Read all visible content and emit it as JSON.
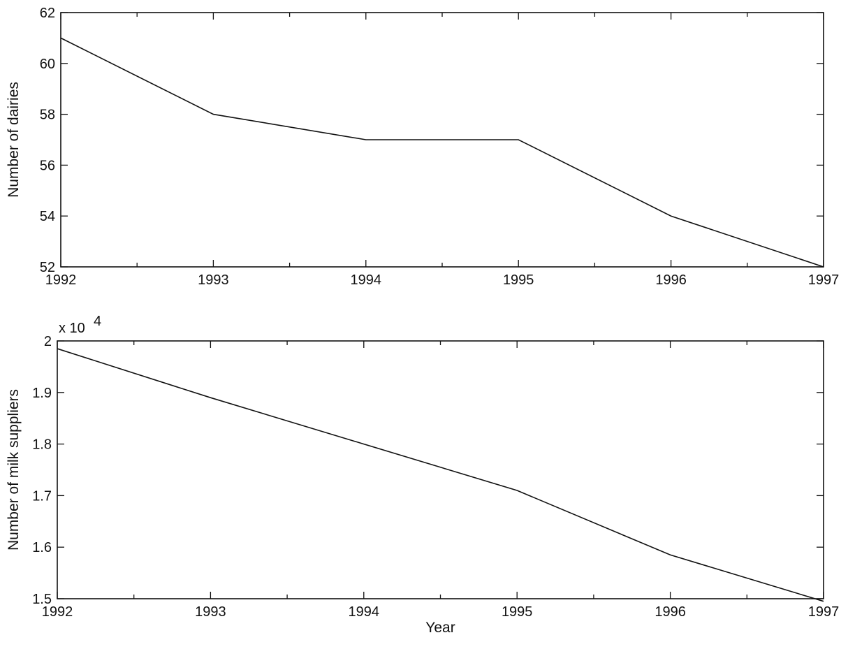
{
  "chart_data": [
    {
      "type": "line",
      "title": "",
      "xlabel": "",
      "ylabel": "Number of dairies",
      "xlim": [
        1992,
        1997
      ],
      "ylim": [
        52,
        62
      ],
      "x_ticks": [
        1992,
        1993,
        1994,
        1995,
        1996,
        1997
      ],
      "y_ticks": [
        52,
        54,
        56,
        58,
        60,
        62
      ],
      "x_tick_labels": [
        "1992",
        "1993",
        "1994",
        "1995",
        "1996",
        "1997"
      ],
      "y_tick_labels": [
        "52",
        "54",
        "56",
        "58",
        "60",
        "62"
      ],
      "exponent_label": "",
      "grid": false,
      "series": [
        {
          "x": [
            1992,
            1993,
            1994,
            1995,
            1996,
            1997
          ],
          "values": [
            61,
            58,
            57,
            57,
            54,
            52
          ]
        }
      ]
    },
    {
      "type": "line",
      "title": "",
      "xlabel": "Year",
      "ylabel": "Number of milk suppliers",
      "xlim": [
        1992,
        1997
      ],
      "ylim": [
        15000,
        20000
      ],
      "x_ticks": [
        1992,
        1993,
        1994,
        1995,
        1996,
        1997
      ],
      "y_ticks": [
        15000,
        16000,
        17000,
        18000,
        19000,
        20000
      ],
      "x_tick_labels": [
        "1992",
        "1993",
        "1994",
        "1995",
        "1996",
        "1997"
      ],
      "y_tick_labels": [
        "1.5",
        "1.6",
        "1.7",
        "1.8",
        "1.9",
        "2"
      ],
      "exponent_label": "x 10",
      "exponent_power": "4",
      "grid": false,
      "series": [
        {
          "x": [
            1992,
            1993,
            1994,
            1995,
            1996,
            1997
          ],
          "values": [
            19850,
            18900,
            18000,
            17100,
            15850,
            14950
          ]
        }
      ]
    }
  ]
}
